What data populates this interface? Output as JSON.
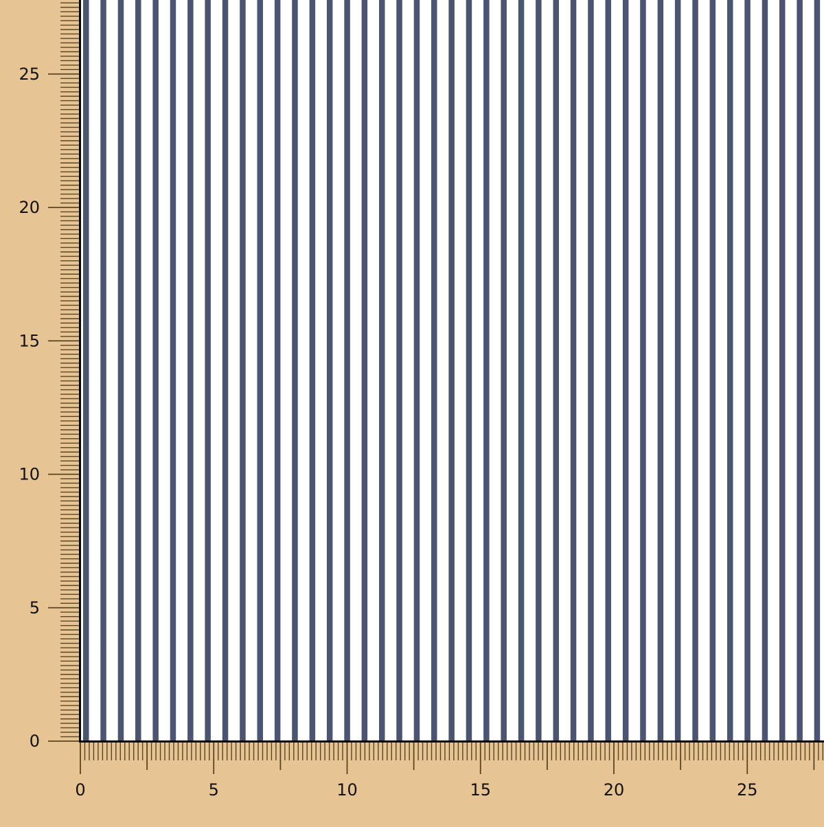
{
  "colors": {
    "background": "#e7c494",
    "fabric_base": "#ffffff",
    "stripe": "#4b5572",
    "ruler_tick": "#5a4520",
    "border": "#000000"
  },
  "fabric": {
    "pattern": "vertical-stripes",
    "icon": "fabric-swatch"
  },
  "ruler_x": {
    "labels": [
      "0",
      "5",
      "10",
      "15",
      "20",
      "25"
    ],
    "values": [
      0,
      5,
      10,
      15,
      20,
      25
    ]
  },
  "ruler_y": {
    "labels": [
      "0",
      "5",
      "10",
      "15",
      "20",
      "25"
    ],
    "values": [
      0,
      5,
      10,
      15,
      20,
      25
    ]
  }
}
